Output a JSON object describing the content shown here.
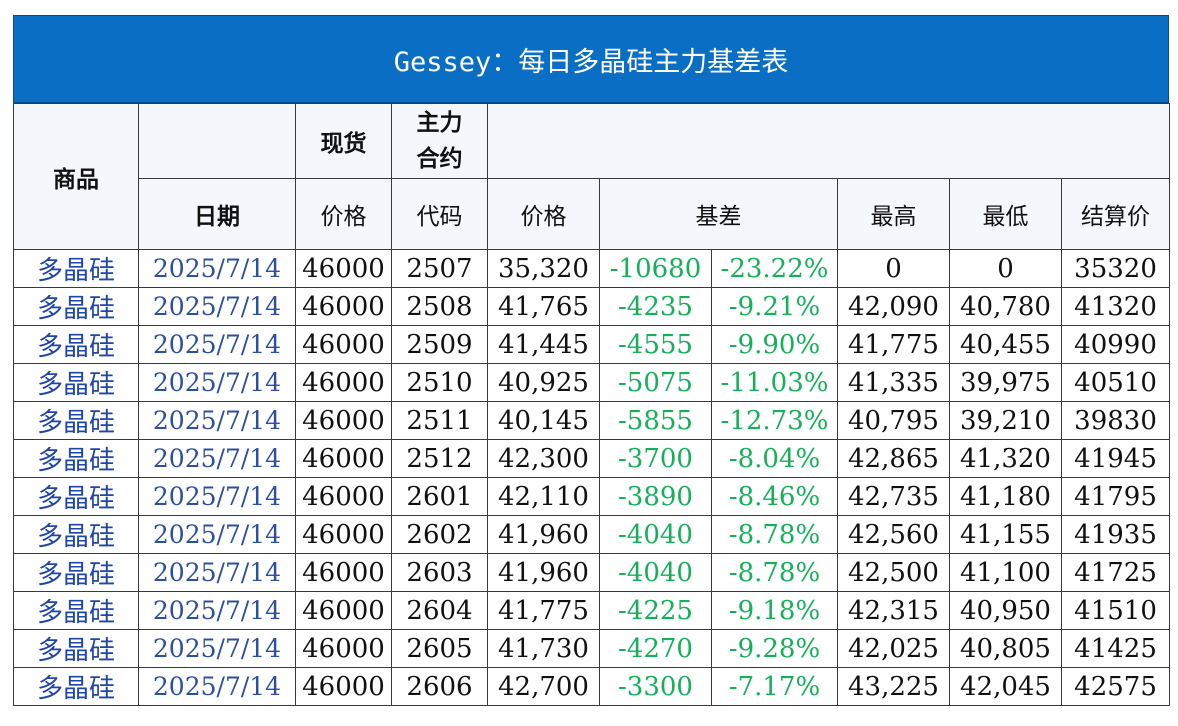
{
  "title": "Gessey：每日多晶硅主力基差表",
  "header": {
    "product": "商品",
    "spot": "现货",
    "main_contract": "主力合约",
    "main_contract_l1": "主力",
    "main_contract_l2": "合约",
    "date": "日期",
    "spot_price": "价格",
    "code": "代码",
    "price": "价格",
    "basis": "基差",
    "high": "最高",
    "low": "最低",
    "settle": "结算价"
  },
  "rows": [
    {
      "product": "多晶硅",
      "date": "2025/7/14",
      "spot": "46000",
      "code": "2507",
      "price": "35,320",
      "basis": "-10680",
      "basis_pct": "-23.22%",
      "high": "0",
      "low": "0",
      "settle": "35320"
    },
    {
      "product": "多晶硅",
      "date": "2025/7/14",
      "spot": "46000",
      "code": "2508",
      "price": "41,765",
      "basis": "-4235",
      "basis_pct": "-9.21%",
      "high": "42,090",
      "low": "40,780",
      "settle": "41320"
    },
    {
      "product": "多晶硅",
      "date": "2025/7/14",
      "spot": "46000",
      "code": "2509",
      "price": "41,445",
      "basis": "-4555",
      "basis_pct": "-9.90%",
      "high": "41,775",
      "low": "40,455",
      "settle": "40990"
    },
    {
      "product": "多晶硅",
      "date": "2025/7/14",
      "spot": "46000",
      "code": "2510",
      "price": "40,925",
      "basis": "-5075",
      "basis_pct": "-11.03%",
      "high": "41,335",
      "low": "39,975",
      "settle": "40510"
    },
    {
      "product": "多晶硅",
      "date": "2025/7/14",
      "spot": "46000",
      "code": "2511",
      "price": "40,145",
      "basis": "-5855",
      "basis_pct": "-12.73%",
      "high": "40,795",
      "low": "39,210",
      "settle": "39830"
    },
    {
      "product": "多晶硅",
      "date": "2025/7/14",
      "spot": "46000",
      "code": "2512",
      "price": "42,300",
      "basis": "-3700",
      "basis_pct": "-8.04%",
      "high": "42,865",
      "low": "41,320",
      "settle": "41945"
    },
    {
      "product": "多晶硅",
      "date": "2025/7/14",
      "spot": "46000",
      "code": "2601",
      "price": "42,110",
      "basis": "-3890",
      "basis_pct": "-8.46%",
      "high": "42,735",
      "low": "41,180",
      "settle": "41795"
    },
    {
      "product": "多晶硅",
      "date": "2025/7/14",
      "spot": "46000",
      "code": "2602",
      "price": "41,960",
      "basis": "-4040",
      "basis_pct": "-8.78%",
      "high": "42,560",
      "low": "41,155",
      "settle": "41935"
    },
    {
      "product": "多晶硅",
      "date": "2025/7/14",
      "spot": "46000",
      "code": "2603",
      "price": "41,960",
      "basis": "-4040",
      "basis_pct": "-8.78%",
      "high": "42,500",
      "low": "41,100",
      "settle": "41725"
    },
    {
      "product": "多晶硅",
      "date": "2025/7/14",
      "spot": "46000",
      "code": "2604",
      "price": "41,775",
      "basis": "-4225",
      "basis_pct": "-9.18%",
      "high": "42,315",
      "low": "40,950",
      "settle": "41510"
    },
    {
      "product": "多晶硅",
      "date": "2025/7/14",
      "spot": "46000",
      "code": "2605",
      "price": "41,730",
      "basis": "-4270",
      "basis_pct": "-9.28%",
      "high": "42,025",
      "low": "40,805",
      "settle": "41425"
    },
    {
      "product": "多晶硅",
      "date": "2025/7/14",
      "spot": "46000",
      "code": "2606",
      "price": "42,700",
      "basis": "-3300",
      "basis_pct": "-7.17%",
      "high": "43,225",
      "low": "42,045",
      "settle": "42575"
    }
  ],
  "colors": {
    "title_bg": "#0a6fc4",
    "product_text": "#2046a8",
    "negative_text": "#16b05a",
    "header_bg": "#f4f8fc"
  }
}
